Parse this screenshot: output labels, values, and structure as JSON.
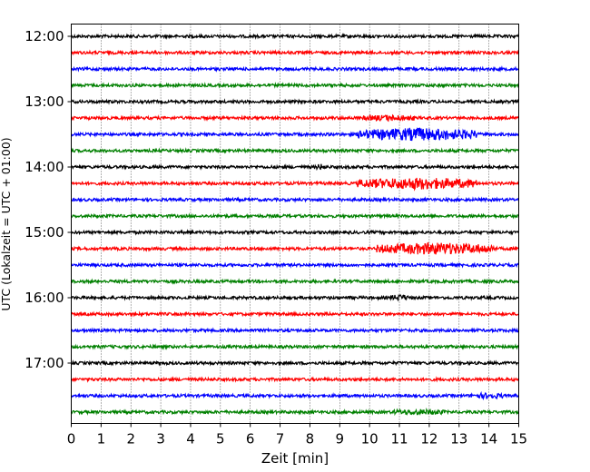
{
  "chart_data": {
    "type": "line",
    "title": "",
    "xlabel": "Zeit  [min]",
    "ylabel": "UTC (Lokalzeit = UTC + 01:00)",
    "xlim": [
      0,
      15
    ],
    "x_ticks": [
      0,
      1,
      2,
      3,
      4,
      5,
      6,
      7,
      8,
      9,
      10,
      11,
      12,
      13,
      14,
      15
    ],
    "y_tick_labels": [
      "12:00",
      "13:00",
      "14:00",
      "15:00",
      "16:00",
      "17:00"
    ],
    "grid": "vertical dotted",
    "trace_interval_min": 15,
    "trace_colors": [
      "#000000",
      "#ff0000",
      "#0000ff",
      "#008000"
    ],
    "traces": [
      {
        "start": "12:00",
        "color": "#000000",
        "events": []
      },
      {
        "start": "12:15",
        "color": "#ff0000",
        "events": []
      },
      {
        "start": "12:30",
        "color": "#0000ff",
        "events": []
      },
      {
        "start": "12:45",
        "color": "#008000",
        "events": []
      },
      {
        "start": "13:00",
        "color": "#000000",
        "events": []
      },
      {
        "start": "13:15",
        "color": "#ff0000",
        "events": [
          {
            "from": 9.8,
            "to": 11.5,
            "amp": 0.35
          }
        ]
      },
      {
        "start": "13:30",
        "color": "#0000ff",
        "events": [
          {
            "from": 9.6,
            "to": 13.6,
            "amp": 1.0
          }
        ]
      },
      {
        "start": "13:45",
        "color": "#008000",
        "events": []
      },
      {
        "start": "14:00",
        "color": "#000000",
        "events": [
          {
            "from": 8.2,
            "to": 8.5,
            "amp": 0.35
          }
        ]
      },
      {
        "start": "14:15",
        "color": "#ff0000",
        "events": [
          {
            "from": 9.6,
            "to": 13.6,
            "amp": 0.9
          }
        ]
      },
      {
        "start": "14:30",
        "color": "#0000ff",
        "events": []
      },
      {
        "start": "14:45",
        "color": "#008000",
        "events": []
      },
      {
        "start": "15:00",
        "color": "#000000",
        "events": []
      },
      {
        "start": "15:15",
        "color": "#ff0000",
        "events": [
          {
            "from": 10.2,
            "to": 14.2,
            "amp": 0.9
          }
        ]
      },
      {
        "start": "15:30",
        "color": "#0000ff",
        "events": []
      },
      {
        "start": "15:45",
        "color": "#008000",
        "events": []
      },
      {
        "start": "16:00",
        "color": "#000000",
        "events": [
          {
            "from": 10.7,
            "to": 11.3,
            "amp": 0.35
          }
        ]
      },
      {
        "start": "16:15",
        "color": "#ff0000",
        "events": []
      },
      {
        "start": "16:30",
        "color": "#0000ff",
        "events": []
      },
      {
        "start": "16:45",
        "color": "#008000",
        "events": []
      },
      {
        "start": "17:00",
        "color": "#000000",
        "events": []
      },
      {
        "start": "17:15",
        "color": "#ff0000",
        "events": []
      },
      {
        "start": "17:30",
        "color": "#0000ff",
        "events": [
          {
            "from": 13.4,
            "to": 14.5,
            "amp": 0.3
          }
        ]
      },
      {
        "start": "17:45",
        "color": "#008000",
        "events": [
          {
            "from": 10.8,
            "to": 12.5,
            "amp": 0.3
          }
        ]
      }
    ]
  }
}
